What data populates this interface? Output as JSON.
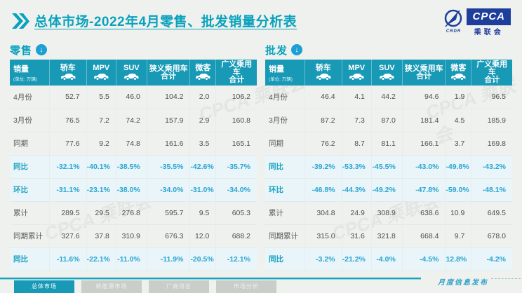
{
  "title": "总体市场-2022年4月零售、批发销量分析表",
  "logo": {
    "acronym": "CPCA",
    "name": "乘联会",
    "emblem_text": "CRDR"
  },
  "watermark": "CPCA 乘联会",
  "footer": {
    "tabs": [
      {
        "label": "总体市场",
        "active": true
      },
      {
        "label": "新能源市场",
        "active": false
      },
      {
        "label": "厂商排名",
        "active": false
      },
      {
        "label": "市场分析",
        "active": false
      }
    ],
    "note": "月度信息发布"
  },
  "chart_data": [
    {
      "type": "table",
      "section": "零售",
      "measure_label": "销量",
      "unit": "(单位: 万辆)",
      "columns": [
        {
          "label": "轿车",
          "icon": "car-icon"
        },
        {
          "label": "MPV",
          "icon": "car-icon"
        },
        {
          "label": "SUV",
          "icon": "car-icon"
        },
        {
          "label": "狭义乘用车",
          "label2": "合计",
          "icon": ""
        },
        {
          "label": "微客",
          "icon": "car-icon"
        },
        {
          "label": "广义乘用车",
          "label2": "合计",
          "icon": ""
        }
      ],
      "rows": [
        {
          "label": "4月份",
          "type": "normal",
          "values": [
            "52.7",
            "5.5",
            "46.0",
            "104.2",
            "2.0",
            "106.2"
          ]
        },
        {
          "label": "3月份",
          "type": "normal",
          "values": [
            "76.5",
            "7.2",
            "74.2",
            "157.9",
            "2.9",
            "160.8"
          ]
        },
        {
          "label": "同期",
          "type": "normal",
          "values": [
            "77.6",
            "9.2",
            "74.8",
            "161.6",
            "3.5",
            "165.1"
          ]
        },
        {
          "label": "同比",
          "type": "percent",
          "values": [
            "-32.1%",
            "-40.1%",
            "-38.5%",
            "-35.5%",
            "-42.6%",
            "-35.7%"
          ]
        },
        {
          "label": "环比",
          "type": "percent",
          "values": [
            "-31.1%",
            "-23.1%",
            "-38.0%",
            "-34.0%",
            "-31.0%",
            "-34.0%"
          ]
        },
        {
          "label": "累计",
          "type": "normal",
          "values": [
            "289.5",
            "29.5",
            "276.8",
            "595.7",
            "9.5",
            "605.3"
          ]
        },
        {
          "label": "同期累计",
          "type": "normal",
          "values": [
            "327.6",
            "37.8",
            "310.9",
            "676.3",
            "12.0",
            "688.2"
          ]
        },
        {
          "label": "同比",
          "type": "percent",
          "values": [
            "-11.6%",
            "-22.1%",
            "-11.0%",
            "-11.9%",
            "-20.5%",
            "-12.1%"
          ]
        }
      ]
    },
    {
      "type": "table",
      "section": "批发",
      "measure_label": "销量",
      "unit": "(单位: 万辆)",
      "columns": [
        {
          "label": "轿车",
          "icon": "car-icon"
        },
        {
          "label": "MPV",
          "icon": "car-icon"
        },
        {
          "label": "SUV",
          "icon": "car-icon"
        },
        {
          "label": "狭义乘用车",
          "label2": "合计",
          "icon": ""
        },
        {
          "label": "微客",
          "icon": "car-icon"
        },
        {
          "label": "广义乘用车",
          "label2": "合计",
          "icon": ""
        }
      ],
      "rows": [
        {
          "label": "4月份",
          "type": "normal",
          "values": [
            "46.4",
            "4.1",
            "44.2",
            "94.6",
            "1.9",
            "96.5"
          ]
        },
        {
          "label": "3月份",
          "type": "normal",
          "values": [
            "87.2",
            "7.3",
            "87.0",
            "181.4",
            "4.5",
            "185.9"
          ]
        },
        {
          "label": "同期",
          "type": "normal",
          "values": [
            "76.2",
            "8.7",
            "81.1",
            "166.1",
            "3.7",
            "169.8"
          ]
        },
        {
          "label": "同比",
          "type": "percent",
          "values": [
            "-39.2%",
            "-53.3%",
            "-45.5%",
            "-43.0%",
            "-49.8%",
            "-43.2%"
          ]
        },
        {
          "label": "环比",
          "type": "percent",
          "values": [
            "-46.8%",
            "-44.3%",
            "-49.2%",
            "-47.8%",
            "-59.0%",
            "-48.1%"
          ]
        },
        {
          "label": "累计",
          "type": "normal",
          "values": [
            "304.8",
            "24.9",
            "308.9",
            "638.6",
            "10.9",
            "649.5"
          ]
        },
        {
          "label": "同期累计",
          "type": "normal",
          "values": [
            "315.0",
            "31.6",
            "321.8",
            "668.4",
            "9.7",
            "678.0"
          ]
        },
        {
          "label": "同比",
          "type": "percent",
          "values": [
            "-3.2%",
            "-21.2%",
            "-4.0%",
            "-4.5%",
            "12.8%",
            "-4.2%"
          ]
        }
      ]
    }
  ],
  "colors": {
    "accent_teal": "#1899b6",
    "title_teal": "#0aa2bd",
    "percent_blue": "#2ba5d3",
    "percent_row_bg": "#e9f5f9",
    "logo_blue": "#1e3e9c",
    "page_bg": "#eff1ee"
  }
}
